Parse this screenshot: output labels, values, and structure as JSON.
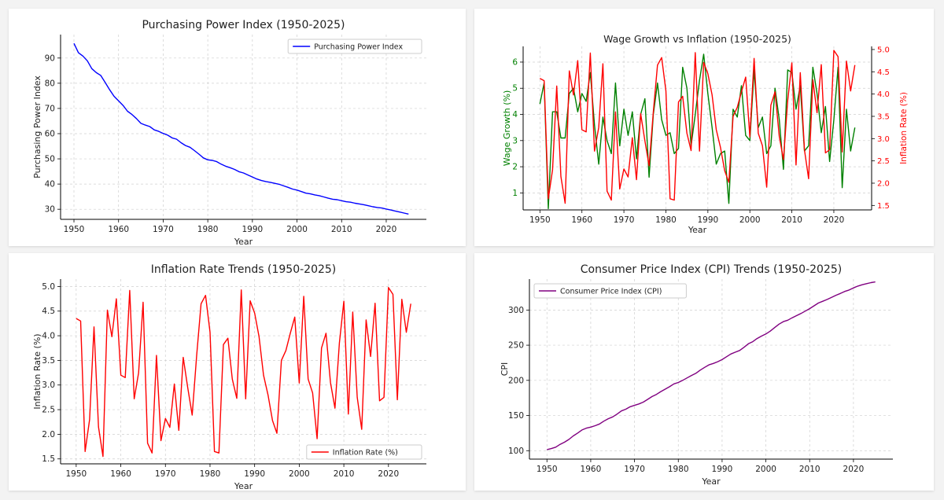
{
  "chart_data": [
    {
      "type": "line",
      "title": "Purchasing Power Index (1950-2025)",
      "xlabel": "Year",
      "ylabel": "Purchasing Power Index",
      "xlim": [
        1947,
        2029
      ],
      "ylim": [
        26,
        99.3
      ],
      "xticks": [
        1950,
        1960,
        1970,
        1980,
        1990,
        2000,
        2010,
        2020
      ],
      "yticks": [
        30,
        40,
        50,
        60,
        70,
        80,
        90
      ],
      "grid": true,
      "legend_position": "top-right",
      "series": [
        {
          "name": "Purchasing Power Index",
          "color": "#0000ff",
          "x": [
            1950,
            1951,
            1952,
            1953,
            1954,
            1955,
            1956,
            1957,
            1958,
            1959,
            1960,
            1961,
            1962,
            1963,
            1964,
            1965,
            1966,
            1967,
            1968,
            1969,
            1970,
            1971,
            1972,
            1973,
            1974,
            1975,
            1976,
            1977,
            1978,
            1979,
            1980,
            1981,
            1982,
            1983,
            1984,
            1985,
            1986,
            1987,
            1988,
            1989,
            1990,
            1991,
            1992,
            1993,
            1994,
            1995,
            1996,
            1997,
            1998,
            1999,
            2000,
            2001,
            2002,
            2003,
            2004,
            2005,
            2006,
            2007,
            2008,
            2009,
            2010,
            2011,
            2012,
            2013,
            2014,
            2015,
            2016,
            2017,
            2018,
            2019,
            2020,
            2021,
            2022,
            2023,
            2024,
            2025
          ],
          "values": [
            95.8,
            92.1,
            90.8,
            88.9,
            85.8,
            84.2,
            83.1,
            80.3,
            77.4,
            74.8,
            73.0,
            71.2,
            68.9,
            67.6,
            66.0,
            64.1,
            63.4,
            62.8,
            61.5,
            60.9,
            60.1,
            59.4,
            58.3,
            57.8,
            56.4,
            55.3,
            54.6,
            53.3,
            51.9,
            50.4,
            49.6,
            49.4,
            48.9,
            47.9,
            47.1,
            46.5,
            45.8,
            44.9,
            44.4,
            43.6,
            42.8,
            42.0,
            41.4,
            41.0,
            40.7,
            40.3,
            39.9,
            39.3,
            38.7,
            38.0,
            37.6,
            37.0,
            36.4,
            36.1,
            35.7,
            35.4,
            34.9,
            34.4,
            34.0,
            33.8,
            33.4,
            33.0,
            32.8,
            32.4,
            32.1,
            31.8,
            31.4,
            31.0,
            30.7,
            30.5,
            30.1,
            29.7,
            29.3,
            28.9,
            28.5,
            28.1
          ]
        }
      ]
    },
    {
      "type": "line",
      "title": "Wage Growth vs Inflation (1950-2025)",
      "xlabel": "Year",
      "ylabel": "Wage Growth (%)",
      "ylabel_right": "Inflation Rate (%)",
      "xlim": [
        1946,
        2029
      ],
      "ylim": [
        0.35,
        6.6
      ],
      "ylim_right": [
        1.4,
        5.07
      ],
      "xticks": [
        1950,
        1960,
        1970,
        1980,
        1990,
        2000,
        2010,
        2020
      ],
      "yticks": [
        1,
        2,
        3,
        4,
        5,
        6
      ],
      "yticks_right": [
        1.5,
        2.0,
        2.5,
        3.0,
        3.5,
        4.0,
        4.5,
        5.0
      ],
      "grid": true,
      "series": [
        {
          "name": "Wage Growth (%)",
          "axis": "left",
          "color": "#008000",
          "x": [
            1950,
            1951,
            1952,
            1953,
            1954,
            1955,
            1956,
            1957,
            1958,
            1959,
            1960,
            1961,
            1962,
            1963,
            1964,
            1965,
            1966,
            1967,
            1968,
            1969,
            1970,
            1971,
            1972,
            1973,
            1974,
            1975,
            1976,
            1977,
            1978,
            1979,
            1980,
            1981,
            1982,
            1983,
            1984,
            1985,
            1986,
            1987,
            1988,
            1989,
            1990,
            1991,
            1992,
            1993,
            1994,
            1995,
            1996,
            1997,
            1998,
            1999,
            2000,
            2001,
            2002,
            2003,
            2004,
            2005,
            2006,
            2007,
            2008,
            2009,
            2010,
            2011,
            2012,
            2013,
            2014,
            2015,
            2016,
            2017,
            2018,
            2019,
            2020,
            2021,
            2022,
            2023,
            2024,
            2025
          ],
          "values": [
            4.4,
            5.2,
            0.4,
            4.1,
            4.1,
            3.1,
            3.1,
            4.8,
            5.0,
            4.1,
            4.8,
            4.5,
            5.6,
            3.6,
            2.1,
            3.9,
            3.0,
            2.5,
            5.2,
            2.8,
            4.2,
            3.2,
            4.1,
            2.3,
            4.0,
            4.6,
            1.6,
            4.0,
            5.2,
            3.8,
            3.2,
            3.3,
            2.5,
            2.7,
            5.8,
            5.0,
            2.8,
            4.0,
            5.3,
            6.3,
            4.8,
            3.5,
            2.1,
            2.5,
            2.6,
            0.6,
            4.2,
            3.9,
            5.1,
            3.2,
            3.0,
            5.7,
            3.5,
            3.9,
            2.5,
            2.8,
            5.0,
            3.8,
            1.9,
            5.7,
            5.6,
            4.2,
            5.1,
            2.6,
            2.8,
            5.8,
            4.8,
            3.3,
            4.3,
            2.2,
            3.8,
            5.8,
            1.2,
            4.2,
            2.6,
            3.5
          ]
        },
        {
          "name": "Inflation Rate (%)",
          "axis": "right",
          "color": "#ff0000",
          "x": [
            1950,
            1951,
            1952,
            1953,
            1954,
            1955,
            1956,
            1957,
            1958,
            1959,
            1960,
            1961,
            1962,
            1963,
            1964,
            1965,
            1966,
            1967,
            1968,
            1969,
            1970,
            1971,
            1972,
            1973,
            1974,
            1975,
            1976,
            1977,
            1978,
            1979,
            1980,
            1981,
            1982,
            1983,
            1984,
            1985,
            1986,
            1987,
            1988,
            1989,
            1990,
            1991,
            1992,
            1993,
            1994,
            1995,
            1996,
            1997,
            1998,
            1999,
            2000,
            2001,
            2002,
            2003,
            2004,
            2005,
            2006,
            2007,
            2008,
            2009,
            2010,
            2011,
            2012,
            2013,
            2014,
            2015,
            2016,
            2017,
            2018,
            2019,
            2020,
            2021,
            2022,
            2023,
            2024,
            2025
          ],
          "values": [
            4.35,
            4.3,
            1.65,
            2.3,
            4.18,
            2.15,
            1.55,
            4.52,
            3.98,
            4.75,
            3.2,
            3.15,
            4.92,
            2.72,
            3.25,
            4.68,
            1.82,
            1.62,
            3.6,
            1.87,
            2.32,
            2.14,
            3.02,
            2.08,
            3.56,
            2.95,
            2.39,
            3.6,
            4.65,
            4.82,
            4.07,
            1.65,
            1.62,
            3.82,
            3.95,
            3.12,
            2.73,
            4.93,
            2.72,
            4.71,
            4.46,
            3.98,
            3.2,
            2.8,
            2.28,
            2.02,
            3.5,
            3.7,
            4.05,
            4.38,
            3.04,
            4.8,
            3.12,
            2.84,
            1.91,
            3.75,
            4.05,
            3.05,
            2.53,
            3.85,
            4.7,
            2.41,
            4.48,
            2.75,
            2.1,
            4.32,
            3.58,
            4.66,
            2.68,
            2.75,
            4.98,
            4.84,
            2.7,
            4.74,
            4.07,
            4.65
          ]
        }
      ]
    },
    {
      "type": "line",
      "title": "Inflation Rate Trends (1950-2025)",
      "xlabel": "Year",
      "ylabel": "Inflation Rate (%)",
      "xlim": [
        1946.5,
        2028.5
      ],
      "ylim": [
        1.4,
        5.15
      ],
      "xticks": [
        1950,
        1960,
        1970,
        1980,
        1990,
        2000,
        2010,
        2020
      ],
      "yticks": [
        1.5,
        2.0,
        2.5,
        3.0,
        3.5,
        4.0,
        4.5,
        5.0
      ],
      "grid": true,
      "legend_position": "bottom-right",
      "series": [
        {
          "name": "Inflation Rate (%)",
          "color": "#ff0000",
          "x": [
            1950,
            1951,
            1952,
            1953,
            1954,
            1955,
            1956,
            1957,
            1958,
            1959,
            1960,
            1961,
            1962,
            1963,
            1964,
            1965,
            1966,
            1967,
            1968,
            1969,
            1970,
            1971,
            1972,
            1973,
            1974,
            1975,
            1976,
            1977,
            1978,
            1979,
            1980,
            1981,
            1982,
            1983,
            1984,
            1985,
            1986,
            1987,
            1988,
            1989,
            1990,
            1991,
            1992,
            1993,
            1994,
            1995,
            1996,
            1997,
            1998,
            1999,
            2000,
            2001,
            2002,
            2003,
            2004,
            2005,
            2006,
            2007,
            2008,
            2009,
            2010,
            2011,
            2012,
            2013,
            2014,
            2015,
            2016,
            2017,
            2018,
            2019,
            2020,
            2021,
            2022,
            2023,
            2024,
            2025
          ],
          "values": [
            4.35,
            4.3,
            1.65,
            2.3,
            4.18,
            2.15,
            1.55,
            4.52,
            3.98,
            4.75,
            3.2,
            3.15,
            4.92,
            2.72,
            3.25,
            4.68,
            1.82,
            1.62,
            3.6,
            1.87,
            2.32,
            2.14,
            3.02,
            2.08,
            3.56,
            2.95,
            2.39,
            3.6,
            4.65,
            4.82,
            4.07,
            1.65,
            1.62,
            3.82,
            3.95,
            3.12,
            2.73,
            4.93,
            2.72,
            4.71,
            4.46,
            3.98,
            3.2,
            2.8,
            2.28,
            2.02,
            3.5,
            3.7,
            4.05,
            4.38,
            3.04,
            4.8,
            3.12,
            2.84,
            1.91,
            3.75,
            4.05,
            3.05,
            2.53,
            3.85,
            4.7,
            2.41,
            4.48,
            2.75,
            2.1,
            4.32,
            3.58,
            4.66,
            2.68,
            2.75,
            4.98,
            4.84,
            2.7,
            4.74,
            4.07,
            4.65
          ]
        }
      ]
    },
    {
      "type": "line",
      "title": "Consumer Price Index (CPI) Trends (1950-2025)",
      "xlabel": "Year",
      "ylabel": "CPI",
      "xlim": [
        1946,
        2029
      ],
      "ylim": [
        88,
        344
      ],
      "xticks": [
        1950,
        1960,
        1970,
        1980,
        1990,
        2000,
        2010,
        2020
      ],
      "yticks": [
        100,
        150,
        200,
        250,
        300
      ],
      "grid": true,
      "legend_position": "top-left",
      "series": [
        {
          "name": "Consumer Price Index (CPI)",
          "color": "#800080",
          "x": [
            1950,
            1951,
            1952,
            1953,
            1954,
            1955,
            1956,
            1957,
            1958,
            1959,
            1960,
            1961,
            1962,
            1963,
            1964,
            1965,
            1966,
            1967,
            1968,
            1969,
            1970,
            1971,
            1972,
            1973,
            1974,
            1975,
            1976,
            1977,
            1978,
            1979,
            1980,
            1981,
            1982,
            1983,
            1984,
            1985,
            1986,
            1987,
            1988,
            1989,
            1990,
            1991,
            1992,
            1993,
            1994,
            1995,
            1996,
            1997,
            1998,
            1999,
            2000,
            2001,
            2002,
            2003,
            2004,
            2005,
            2006,
            2007,
            2008,
            2009,
            2010,
            2011,
            2012,
            2013,
            2014,
            2015,
            2016,
            2017,
            2018,
            2019,
            2020,
            2021,
            2022,
            2023,
            2024,
            2025
          ],
          "values": [
            101.5,
            103.0,
            105.0,
            109.0,
            112.0,
            116.0,
            121.0,
            125.0,
            129.5,
            132.0,
            133.5,
            135.5,
            138.0,
            142.0,
            145.5,
            148.0,
            152.0,
            156.5,
            159.0,
            162.5,
            164.5,
            166.5,
            169.0,
            173.0,
            177.0,
            180.0,
            184.0,
            187.5,
            191.0,
            195.0,
            197.0,
            200.0,
            203.5,
            207.0,
            210.0,
            214.5,
            218.5,
            222.0,
            224.0,
            226.5,
            229.5,
            233.5,
            237.5,
            240.0,
            242.5,
            247.0,
            252.0,
            255.0,
            259.5,
            263.0,
            266.0,
            270.0,
            275.0,
            280.0,
            283.5,
            285.5,
            289.0,
            292.0,
            295.0,
            298.5,
            302.0,
            306.0,
            310.0,
            312.5,
            315.0,
            318.0,
            321.0,
            323.5,
            326.5,
            328.5,
            331.5,
            334.0,
            336.0,
            337.5,
            339.0,
            340.0
          ]
        }
      ]
    }
  ]
}
